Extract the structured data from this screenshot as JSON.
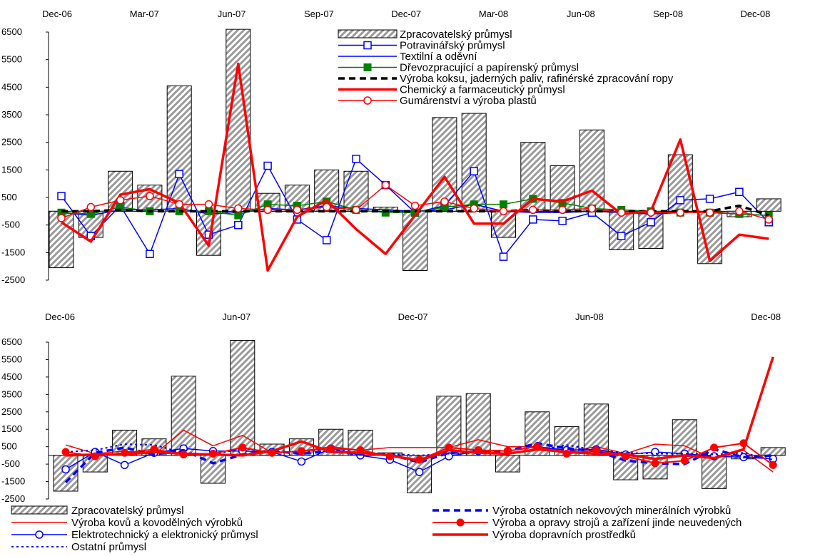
{
  "chart_data": [
    {
      "type": "bar",
      "x_tick_labels": [
        "Dec-06",
        "Mar-07",
        "Jun-07",
        "Sep-07",
        "Dec-07",
        "Mar-08",
        "Jun-08",
        "Sep-08",
        "Dec-08"
      ],
      "y_tick_labels": [
        "6500",
        "5500",
        "4500",
        "3500",
        "2500",
        "1500",
        "500",
        "-500",
        "-1500",
        "-2500"
      ],
      "ylim": [
        -2500,
        6500
      ],
      "categories": [
        "Dec-06",
        "Jan-07",
        "Feb-07",
        "Mar-07",
        "Apr-07",
        "May-07",
        "Jun-07",
        "Jul-07",
        "Aug-07",
        "Sep-07",
        "Oct-07",
        "Nov-07",
        "Dec-07",
        "Jan-08",
        "Feb-08",
        "Mar-08",
        "Apr-08",
        "May-08",
        "Jun-08",
        "Jul-08",
        "Aug-08",
        "Sep-08",
        "Oct-08",
        "Nov-08",
        "Dec-08"
      ],
      "legend_position": "top-right",
      "series": [
        {
          "name": "Zpracovatelský průmysl",
          "kind": "bar",
          "values": [
            -2050,
            -950,
            1450,
            950,
            4550,
            -1600,
            6600,
            650,
            950,
            1500,
            1450,
            150,
            -2150,
            3400,
            3550,
            -950,
            2500,
            1650,
            2950,
            -1400,
            -1350,
            2050,
            -1900,
            -200,
            450
          ]
        },
        {
          "name": "Potravinářský průmysl",
          "kind": "line-square-open",
          "color": "#0000ff",
          "values": [
            550,
            -900,
            200,
            -1550,
            1350,
            -850,
            -500,
            1650,
            -300,
            -1050,
            1900,
            950,
            -50,
            200,
            1450,
            -1650,
            -300,
            -350,
            -50,
            -900,
            -400,
            400,
            450,
            700,
            -400
          ]
        },
        {
          "name": "Textilní a oděvní",
          "kind": "line",
          "color": "#0000ff",
          "values": [
            -50,
            -150,
            50,
            50,
            100,
            -100,
            -50,
            100,
            50,
            200,
            100,
            50,
            0,
            50,
            250,
            0,
            -50,
            -50,
            0,
            -50,
            -100,
            -50,
            -50,
            -100,
            -150
          ]
        },
        {
          "name": "Dřevozpracující a papírenský průmysl",
          "kind": "line-square-filled",
          "color": "#008000",
          "values": [
            -50,
            -100,
            150,
            0,
            0,
            0,
            -150,
            250,
            200,
            350,
            50,
            -50,
            -50,
            150,
            250,
            250,
            450,
            300,
            100,
            50,
            0,
            -50,
            -50,
            -100,
            -150
          ]
        },
        {
          "name": "Výroba koksu, jaderných paliv, rafinérské zpracování ropy",
          "kind": "line-dashed",
          "color": "#000000",
          "values": [
            0,
            0,
            50,
            0,
            0,
            0,
            0,
            0,
            0,
            0,
            0,
            0,
            0,
            0,
            0,
            0,
            50,
            0,
            0,
            0,
            0,
            0,
            0,
            200,
            -150
          ]
        },
        {
          "name": "Chemický a farmaceutický průmysl",
          "kind": "line-thick",
          "color": "#ff0000",
          "values": [
            -400,
            -1100,
            600,
            800,
            300,
            -1250,
            5350,
            -2150,
            -200,
            400,
            -650,
            -1550,
            -150,
            1250,
            -450,
            -450,
            450,
            350,
            750,
            -100,
            0,
            2600,
            -1800,
            -850,
            -1000
          ]
        },
        {
          "name": "Gumárenství a výroba plastů",
          "kind": "line-circle-open",
          "color": "#ff0000",
          "values": [
            -250,
            150,
            400,
            550,
            250,
            250,
            100,
            50,
            50,
            150,
            50,
            950,
            200,
            350,
            100,
            0,
            50,
            50,
            100,
            -50,
            -50,
            -50,
            -50,
            0,
            -300
          ]
        }
      ]
    },
    {
      "type": "bar",
      "x_tick_labels": [
        "Dec-06",
        "Jun-07",
        "Dec-07",
        "Jun-08",
        "Dec-08"
      ],
      "y_tick_labels": [
        "6500",
        "5500",
        "4500",
        "3500",
        "2500",
        "1500",
        "500",
        "-500",
        "-1500",
        "-2500"
      ],
      "ylim": [
        -2500,
        6500
      ],
      "categories": [
        "Dec-06",
        "Jan-07",
        "Feb-07",
        "Mar-07",
        "Apr-07",
        "May-07",
        "Jun-07",
        "Jul-07",
        "Aug-07",
        "Sep-07",
        "Oct-07",
        "Nov-07",
        "Dec-07",
        "Jan-08",
        "Feb-08",
        "Mar-08",
        "Apr-08",
        "May-08",
        "Jun-08",
        "Jul-08",
        "Aug-08",
        "Sep-08",
        "Oct-08",
        "Nov-08",
        "Dec-08"
      ],
      "legend_position": "bottom",
      "series": [
        {
          "name": "Zpracovatelský průmysl",
          "kind": "bar",
          "values": [
            -2050,
            -950,
            1450,
            950,
            4550,
            -1600,
            6600,
            650,
            950,
            1500,
            1450,
            150,
            -2150,
            3400,
            3550,
            -950,
            2500,
            1650,
            2950,
            -1400,
            -1350,
            2050,
            -1900,
            -200,
            450
          ]
        },
        {
          "name": "Výroba kovů a kovodělných výrobků",
          "kind": "line-thin",
          "color": "#ff0000",
          "values": [
            600,
            100,
            250,
            50,
            1450,
            550,
            1150,
            150,
            250,
            500,
            300,
            450,
            450,
            450,
            900,
            500,
            500,
            200,
            500,
            100,
            650,
            550,
            -200,
            300,
            -950
          ]
        },
        {
          "name": "Elektrotechnický a elektronický průmysl",
          "kind": "line-circle-open",
          "color": "#0000ff",
          "values": [
            -800,
            200,
            -550,
            150,
            400,
            250,
            250,
            200,
            -350,
            400,
            0,
            -250,
            -950,
            -50,
            250,
            250,
            500,
            300,
            350,
            50,
            200,
            100,
            -50,
            -100,
            -200
          ]
        },
        {
          "name": "Ostatní průmysl",
          "kind": "line-dotted",
          "color": "#0000ff",
          "values": [
            200,
            300,
            650,
            600,
            150,
            50,
            400,
            200,
            200,
            350,
            150,
            100,
            0,
            100,
            150,
            100,
            300,
            600,
            300,
            150,
            100,
            100,
            50,
            150,
            -250
          ]
        },
        {
          "name": "Výroba ostatních nekovových minerálních výrobků",
          "kind": "line-dashed",
          "color": "#0000ff",
          "values": [
            -1550,
            150,
            450,
            50,
            300,
            -450,
            50,
            250,
            100,
            250,
            50,
            50,
            -400,
            150,
            250,
            250,
            700,
            400,
            250,
            -300,
            -450,
            -500,
            350,
            -100,
            0
          ]
        },
        {
          "name": "Výroba a opravy strojů a zařízení jinde neuvedených",
          "kind": "line-circle-filled",
          "color": "#ff0000",
          "values": [
            200,
            -50,
            150,
            350,
            50,
            100,
            450,
            150,
            250,
            400,
            300,
            -50,
            -250,
            450,
            300,
            250,
            500,
            100,
            300,
            -50,
            -450,
            -300,
            450,
            700,
            -550
          ]
        },
        {
          "name": "Výroba dopravních prostředků",
          "kind": "line-thick",
          "color": "#ff0000",
          "values": [
            0,
            50,
            50,
            200,
            100,
            50,
            0,
            250,
            800,
            200,
            150,
            0,
            -300,
            300,
            150,
            100,
            350,
            200,
            100,
            50,
            -200,
            0,
            -150,
            350,
            5650
          ]
        }
      ]
    }
  ],
  "legend1": [
    "Zpracovatelský průmysl",
    "Potravinářský průmysl",
    "Textilní a oděvní",
    "Dřevozpracující a papírenský průmysl",
    "Výroba koksu, jaderných paliv, rafinérské zpracování ropy",
    "Chemický a farmaceutický průmysl",
    "Gumárenství a výroba plastů"
  ],
  "legend2": [
    "Zpracovatelský průmysl",
    "Výroba kovů a kovodělných výrobků",
    "Elektrotechnický a elektronický průmysl",
    "Ostatní průmysl",
    "Výroba ostatních nekovových minerálních výrobků",
    "Výroba a opravy strojů a zařízení jinde neuvedených",
    "Výroba dopravních prostředků"
  ]
}
